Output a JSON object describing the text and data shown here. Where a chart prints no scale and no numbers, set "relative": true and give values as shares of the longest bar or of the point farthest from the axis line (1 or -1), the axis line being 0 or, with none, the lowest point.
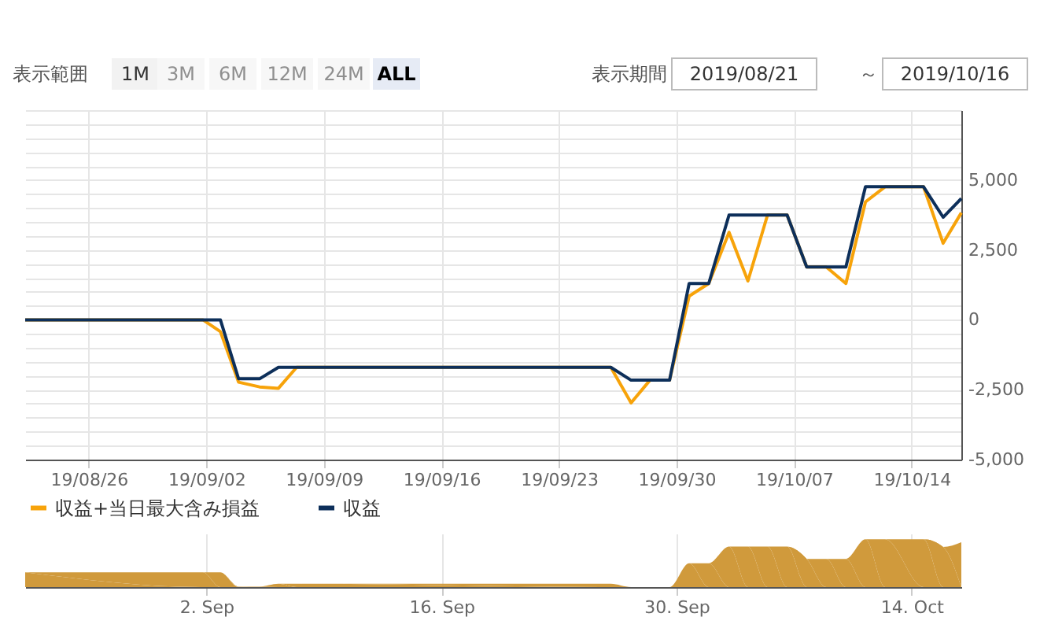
{
  "chart_data": [
    {
      "type": "line",
      "annotations": [
        "表示範囲",
        "1M",
        "3M",
        "6M",
        "12M",
        "24M",
        "ALL",
        "表示期間",
        "2019/08/21",
        "～",
        "2019/10/16"
      ],
      "x": [
        "2019-08-22T05:00",
        "2019-09-01T19:00",
        "2019-09-02T20:00",
        "2019-09-03T22:00",
        "2019-09-05T04:00",
        "2019-09-06T07:00",
        "2019-09-07T09:00",
        "2019-09-26T02:00",
        "2019-09-27T07:00",
        "2019-09-28T10:00",
        "2019-09-29T14:00",
        "2019-09-30T18:00",
        "2019-10-01T22:00",
        "2019-10-03T03:00",
        "2019-10-04T06:00",
        "2019-10-05T10:00",
        "2019-10-06T14:00",
        "2019-10-07T18:00",
        "2019-10-08T22:00",
        "2019-10-10T02:00",
        "2019-10-11T06:00",
        "2019-10-12T10:00",
        "2019-10-14T17:00",
        "2019-10-15T21:00",
        "2019-10-16T23:00"
      ],
      "series": [
        {
          "name": "収益+当日最大含み損益",
          "color": "#f7a30a",
          "values": [
            0,
            0,
            -420,
            -2230,
            -2400,
            -2450,
            -1700,
            -1700,
            -2970,
            -2160,
            -2160,
            850,
            1300,
            3130,
            1390,
            3750,
            3750,
            1890,
            1890,
            1300,
            4220,
            4760,
            4760,
            2740,
            3830
          ]
        },
        {
          "name": "収益",
          "color": "#0d2f5a",
          "values": [
            0,
            0,
            0,
            -2110,
            -2110,
            -1700,
            -1700,
            -1700,
            -2160,
            -2160,
            -2160,
            1300,
            1300,
            3750,
            3750,
            3750,
            3750,
            1890,
            1890,
            1890,
            4760,
            4760,
            4760,
            3670,
            4340
          ]
        }
      ],
      "xlim": [
        "2019-08-22T05:00",
        "2019-10-16T23:00"
      ],
      "xticks": [
        {
          "value": "2019-08-26",
          "label": "19/08/26"
        },
        {
          "value": "2019-09-02",
          "label": "19/09/02"
        },
        {
          "value": "2019-09-09",
          "label": "19/09/09"
        },
        {
          "value": "2019-09-16",
          "label": "19/09/16"
        },
        {
          "value": "2019-09-23",
          "label": "19/09/23"
        },
        {
          "value": "2019-09-30",
          "label": "19/09/30"
        },
        {
          "value": "2019-10-07",
          "label": "19/10/07"
        },
        {
          "value": "2019-10-14",
          "label": "19/10/14"
        }
      ],
      "ylim": [
        -5000,
        7500
      ],
      "yticks": [
        {
          "value": -5000,
          "label": "-5,000"
        },
        {
          "value": -4500,
          "label": null
        },
        {
          "value": -4000,
          "label": null
        },
        {
          "value": -3500,
          "label": null
        },
        {
          "value": -3000,
          "label": null
        },
        {
          "value": -2500,
          "label": "-2,500"
        },
        {
          "value": -2000,
          "label": null
        },
        {
          "value": -1500,
          "label": null
        },
        {
          "value": -1000,
          "label": null
        },
        {
          "value": -500,
          "label": null
        },
        0,
        {
          "value": 500,
          "label": null
        },
        {
          "value": 1000,
          "label": null
        },
        {
          "value": 1500,
          "label": null
        },
        {
          "value": 2000,
          "label": null
        },
        {
          "value": 2500,
          "label": "2,500"
        },
        {
          "value": 3000,
          "label": null
        },
        {
          "value": 3500,
          "label": null
        },
        {
          "value": 4000,
          "label": null
        },
        {
          "value": 4500,
          "label": null
        },
        {
          "value": 5000,
          "label": "5,000"
        },
        {
          "value": 5500,
          "label": null
        },
        {
          "value": 6000,
          "label": null
        },
        {
          "value": 6500,
          "label": null
        },
        {
          "value": 7000,
          "label": null
        },
        {
          "value": 7500,
          "label": null
        }
      ],
      "grid": true,
      "legend": "bottom",
      "marker": "none",
      "line_style": "solid"
    },
    {
      "type": "area",
      "relative": true,
      "x": [
        "2019-08-22T05:00",
        "2019-09-01T19:00",
        "2019-09-02T20:00",
        "2019-09-03T22:00",
        "2019-09-05T04:00",
        "2019-09-06T07:00",
        "2019-09-07T09:00",
        "2019-09-26T02:00",
        "2019-09-27T07:00",
        "2019-09-28T10:00",
        "2019-09-29T14:00",
        "2019-09-30T18:00",
        "2019-10-01T22:00",
        "2019-10-03T03:00",
        "2019-10-04T06:00",
        "2019-10-05T10:00",
        "2019-10-06T14:00",
        "2019-10-07T18:00",
        "2019-10-08T22:00",
        "2019-10-10T02:00",
        "2019-10-11T06:00",
        "2019-10-12T10:00",
        "2019-10-14T17:00",
        "2019-10-15T21:00",
        "2019-10-16T23:00"
      ],
      "series": [
        {
          "color": "#d09a3c",
          "values": [
            0.31,
            0.31,
            0.31,
            0.01,
            0.01,
            0.07,
            0.07,
            0.07,
            0,
            0,
            0,
            0.5,
            0.5,
            0.85,
            0.85,
            0.85,
            0.85,
            0.59,
            0.59,
            0.59,
            1,
            1,
            1,
            0.84,
            0.94
          ]
        }
      ],
      "xlim": [
        "2019-08-22T05:00",
        "2019-10-16T23:00"
      ],
      "xticks": [
        {
          "value": "2019-09-02",
          "label": "2. Sep"
        },
        {
          "value": "2019-09-16",
          "label": "16. Sep"
        },
        {
          "value": "2019-09-30",
          "label": "30. Sep"
        },
        {
          "value": "2019-10-14",
          "label": "14. Oct"
        }
      ],
      "grid": "x",
      "tick_labels": "x"
    }
  ]
}
